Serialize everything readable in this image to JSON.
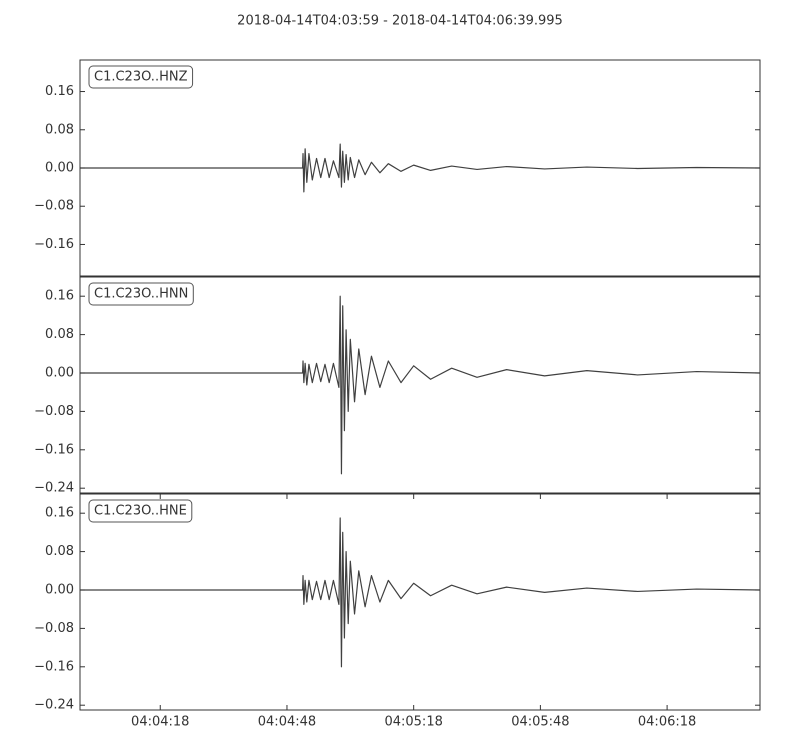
{
  "title": "2018-04-14T04:03:59  -  2018-04-14T04:06:39.995",
  "chart_data": [
    {
      "type": "line",
      "x": [
        0,
        52.7,
        52.8,
        53.0,
        53.3,
        53.7,
        54.2,
        55,
        56,
        57,
        58,
        59,
        60,
        61.3,
        61.6,
        61.9,
        62.2,
        62.6,
        63,
        63.5,
        64,
        65,
        66,
        67.5,
        69,
        71,
        73,
        76,
        79,
        83,
        88,
        94,
        101,
        110,
        120,
        132,
        146,
        160.995
      ],
      "series": [
        {
          "name": "C1.C23O..HNZ",
          "color": "#404040",
          "values": [
            0,
            0,
            0.03,
            -0.05,
            0.04,
            -0.03,
            0.03,
            -0.025,
            0.02,
            -0.02,
            0.02,
            -0.02,
            0.015,
            -0.02,
            0.05,
            -0.04,
            0.035,
            -0.03,
            0.028,
            -0.025,
            0.022,
            -0.02,
            0.017,
            -0.014,
            0.012,
            -0.01,
            0.009,
            -0.007,
            0.006,
            -0.005,
            0.004,
            -0.003,
            0.003,
            -0.002,
            0.002,
            -0.001,
            0.001,
            0
          ]
        }
      ],
      "xlim": [
        0,
        160.995
      ],
      "ylim": [
        -0.226,
        0.226
      ],
      "yticks": [
        {
          "value": 0.16,
          "label": "0.16"
        },
        {
          "value": 0.08,
          "label": "0.08"
        },
        {
          "value": 0,
          "label": "0.00"
        },
        {
          "value": -0.08,
          "label": "−0.08"
        },
        {
          "value": -0.16,
          "label": "−0.16"
        }
      ]
    },
    {
      "type": "line",
      "x": [
        0,
        52.7,
        52.8,
        53.0,
        53.3,
        53.7,
        54.2,
        55,
        56,
        57,
        58,
        59,
        60,
        61.3,
        61.6,
        61.9,
        62.2,
        62.6,
        63,
        63.5,
        64,
        65,
        66,
        67.5,
        69,
        71,
        73,
        76,
        79,
        83,
        88,
        94,
        101,
        110,
        120,
        132,
        146,
        160.995
      ],
      "series": [
        {
          "name": "C1.C23O..HNN",
          "color": "#404040",
          "values": [
            0,
            0,
            0.025,
            -0.02,
            0.02,
            -0.025,
            0.018,
            -0.02,
            0.02,
            -0.018,
            0.018,
            -0.02,
            0.02,
            -0.03,
            0.16,
            -0.21,
            0.14,
            -0.12,
            0.09,
            -0.08,
            0.07,
            -0.06,
            0.05,
            -0.045,
            0.035,
            -0.03,
            0.025,
            -0.02,
            0.015,
            -0.013,
            0.01,
            -0.009,
            0.007,
            -0.006,
            0.005,
            -0.004,
            0.003,
            0
          ]
        }
      ],
      "xlim": [
        0,
        160.995
      ],
      "ylim": [
        -0.25,
        0.2
      ],
      "yticks": [
        {
          "value": 0.16,
          "label": "0.16"
        },
        {
          "value": 0.08,
          "label": "0.08"
        },
        {
          "value": 0,
          "label": "0.00"
        },
        {
          "value": -0.08,
          "label": "−0.08"
        },
        {
          "value": -0.16,
          "label": "−0.16"
        },
        {
          "value": -0.24,
          "label": "−0.24"
        }
      ]
    },
    {
      "type": "line",
      "x": [
        0,
        52.7,
        52.8,
        53.0,
        53.3,
        53.7,
        54.2,
        55,
        56,
        57,
        58,
        59,
        60,
        61.3,
        61.6,
        61.9,
        62.2,
        62.6,
        63,
        63.5,
        64,
        65,
        66,
        67.5,
        69,
        71,
        73,
        76,
        79,
        83,
        88,
        94,
        101,
        110,
        120,
        132,
        146,
        160.995
      ],
      "series": [
        {
          "name": "C1.C23O..HNE",
          "color": "#404040",
          "values": [
            0,
            0,
            0.03,
            -0.03,
            0.02,
            -0.025,
            0.02,
            -0.02,
            0.018,
            -0.02,
            0.02,
            -0.02,
            0.02,
            -0.03,
            0.15,
            -0.16,
            0.12,
            -0.1,
            0.08,
            -0.07,
            0.06,
            -0.05,
            0.04,
            -0.035,
            0.03,
            -0.025,
            0.02,
            -0.018,
            0.014,
            -0.012,
            0.01,
            -0.008,
            0.006,
            -0.005,
            0.004,
            -0.003,
            0.002,
            0
          ]
        }
      ],
      "xlim": [
        0,
        160.995
      ],
      "ylim": [
        -0.25,
        0.2
      ],
      "yticks": [
        {
          "value": 0.16,
          "label": "0.16"
        },
        {
          "value": 0.08,
          "label": "0.08"
        },
        {
          "value": 0,
          "label": "0.00"
        },
        {
          "value": -0.08,
          "label": "−0.08"
        },
        {
          "value": -0.16,
          "label": "−0.16"
        },
        {
          "value": -0.24,
          "label": "−0.24"
        }
      ],
      "xticks": [
        {
          "value": 19,
          "label": "04:04:18"
        },
        {
          "value": 49,
          "label": "04:04:48"
        },
        {
          "value": 79,
          "label": "04:05:18"
        },
        {
          "value": 109,
          "label": "04:05:48"
        },
        {
          "value": 139,
          "label": "04:06:18"
        }
      ]
    }
  ]
}
